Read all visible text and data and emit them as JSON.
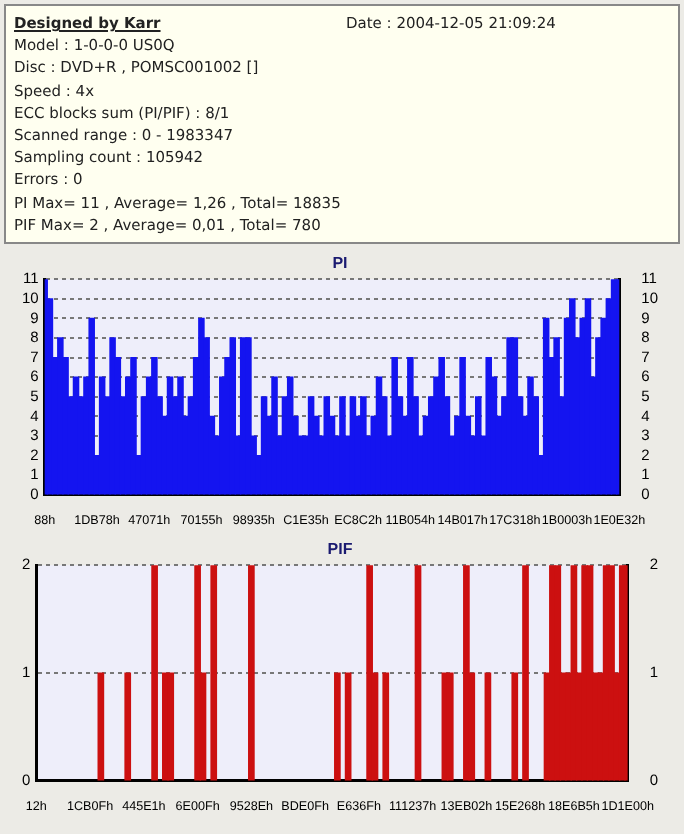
{
  "chart_data": [
    {
      "type": "other",
      "title": "Designed by Karr",
      "annotations": [
        "Date : 2004-12-05 21:09:24",
        "Model : 1-0-0-0 US0Q",
        "Disc : DVD+R , POMSC001002 []",
        "Speed : 4x",
        "ECC blocks sum (PI/PIF) : 8/1",
        "Scanned range : 0 - 1983347",
        "Sampling count : 105942",
        "Errors : 0",
        "PI Max= 11 , Average= 1,26 , Total= 18835",
        "PIF Max= 2 , Average= 0,01 , Total= 780"
      ]
    },
    {
      "type": "bar",
      "title": "PI",
      "categories": [
        "88h",
        null,
        null,
        null,
        null,
        null,
        null,
        null,
        null,
        null,
        "1DB78h",
        null,
        null,
        null,
        null,
        null,
        null,
        null,
        null,
        null,
        "47071h",
        null,
        null,
        null,
        null,
        null,
        null,
        null,
        null,
        null,
        "70155h",
        null,
        null,
        null,
        null,
        null,
        null,
        null,
        null,
        null,
        "98935h",
        null,
        null,
        null,
        null,
        null,
        null,
        null,
        null,
        null,
        "C1E35h",
        null,
        null,
        null,
        null,
        null,
        null,
        null,
        null,
        null,
        "EC8C2h",
        null,
        null,
        null,
        null,
        null,
        null,
        null,
        null,
        null,
        "11B054h",
        null,
        null,
        null,
        null,
        null,
        null,
        null,
        null,
        null,
        "14B017h",
        null,
        null,
        null,
        null,
        null,
        null,
        null,
        null,
        null,
        "17C318h",
        null,
        null,
        null,
        null,
        null,
        null,
        null,
        null,
        null,
        "1B0003h",
        null,
        null,
        null,
        null,
        null,
        null,
        null,
        null,
        null,
        "1E0E32h"
      ],
      "values": [
        11,
        10,
        7,
        8,
        7,
        5,
        6,
        5,
        6,
        9,
        2,
        6,
        5,
        8,
        7,
        5,
        6,
        7,
        2,
        5,
        6,
        7,
        5,
        4,
        6,
        5,
        6,
        4,
        5,
        7,
        9,
        8,
        4,
        3,
        6,
        7,
        8,
        3,
        8,
        8,
        3,
        2,
        5,
        4,
        6,
        3,
        5,
        6,
        4,
        3,
        3,
        5,
        4,
        3,
        5,
        4,
        3,
        5,
        3,
        5,
        4,
        5,
        3,
        4,
        6,
        5,
        3,
        7,
        5,
        4,
        7,
        5,
        3,
        4,
        5,
        6,
        7,
        5,
        3,
        4,
        7,
        4,
        3,
        5,
        3,
        7,
        6,
        4,
        5,
        8,
        8,
        5,
        4,
        6,
        5,
        2,
        9,
        7,
        8,
        5,
        9,
        10,
        8,
        9,
        10,
        6,
        8,
        9,
        10,
        11,
        11
      ],
      "color": "#1414f0",
      "ylim": [
        0,
        11
      ],
      "yticks": [
        0,
        1,
        2,
        3,
        4,
        5,
        6,
        7,
        8,
        9,
        10,
        11
      ],
      "y2lim": [
        0,
        11
      ],
      "y2ticks": [
        0,
        1,
        2,
        3,
        4,
        5,
        6,
        7,
        8,
        9,
        10,
        11
      ],
      "grid": "y"
    },
    {
      "type": "bar",
      "title": "PIF",
      "categories": [
        "12h",
        null,
        null,
        null,
        null,
        null,
        null,
        null,
        null,
        null,
        "1CB0Fh",
        null,
        null,
        null,
        null,
        null,
        null,
        null,
        null,
        null,
        "445E1h",
        null,
        null,
        null,
        null,
        null,
        null,
        null,
        null,
        null,
        "6E00Fh",
        null,
        null,
        null,
        null,
        null,
        null,
        null,
        null,
        null,
        "9528Eh",
        null,
        null,
        null,
        null,
        null,
        null,
        null,
        null,
        null,
        "BDE0Fh",
        null,
        null,
        null,
        null,
        null,
        null,
        null,
        null,
        null,
        "E636Fh",
        null,
        null,
        null,
        null,
        null,
        null,
        null,
        null,
        null,
        "111237h",
        null,
        null,
        null,
        null,
        null,
        null,
        null,
        null,
        null,
        "13EB02h",
        null,
        null,
        null,
        null,
        null,
        null,
        null,
        null,
        null,
        "15E268h",
        null,
        null,
        null,
        null,
        null,
        null,
        null,
        null,
        null,
        "18E6B5h",
        null,
        null,
        null,
        null,
        null,
        null,
        null,
        null,
        null,
        "1D1E00h"
      ],
      "values": [
        0,
        0,
        0,
        0,
        0,
        0,
        0,
        0,
        0,
        0,
        0,
        0,
        1,
        0,
        0,
        0,
        0,
        1,
        0,
        0,
        0,
        0,
        2,
        0,
        1,
        1,
        0,
        0,
        0,
        0,
        2,
        1,
        0,
        2,
        0,
        0,
        0,
        0,
        0,
        0,
        2,
        0,
        0,
        0,
        0,
        0,
        0,
        0,
        0,
        0,
        0,
        0,
        0,
        0,
        0,
        0,
        1,
        0,
        1,
        0,
        0,
        0,
        2,
        1,
        0,
        1,
        0,
        0,
        0,
        0,
        0,
        2,
        0,
        0,
        0,
        0,
        1,
        1,
        0,
        0,
        2,
        1,
        0,
        0,
        1,
        0,
        0,
        0,
        0,
        1,
        0,
        2,
        0,
        0,
        0,
        1,
        2,
        2,
        1,
        1,
        2,
        1,
        2,
        2,
        1,
        1,
        2,
        2,
        1,
        2,
        2
      ],
      "color": "#cc1010",
      "ylim": [
        0,
        2
      ],
      "yticks": [
        0,
        1,
        2
      ],
      "y2lim": [
        0,
        2
      ],
      "y2ticks": [
        0,
        1,
        2
      ],
      "grid": "y"
    }
  ]
}
